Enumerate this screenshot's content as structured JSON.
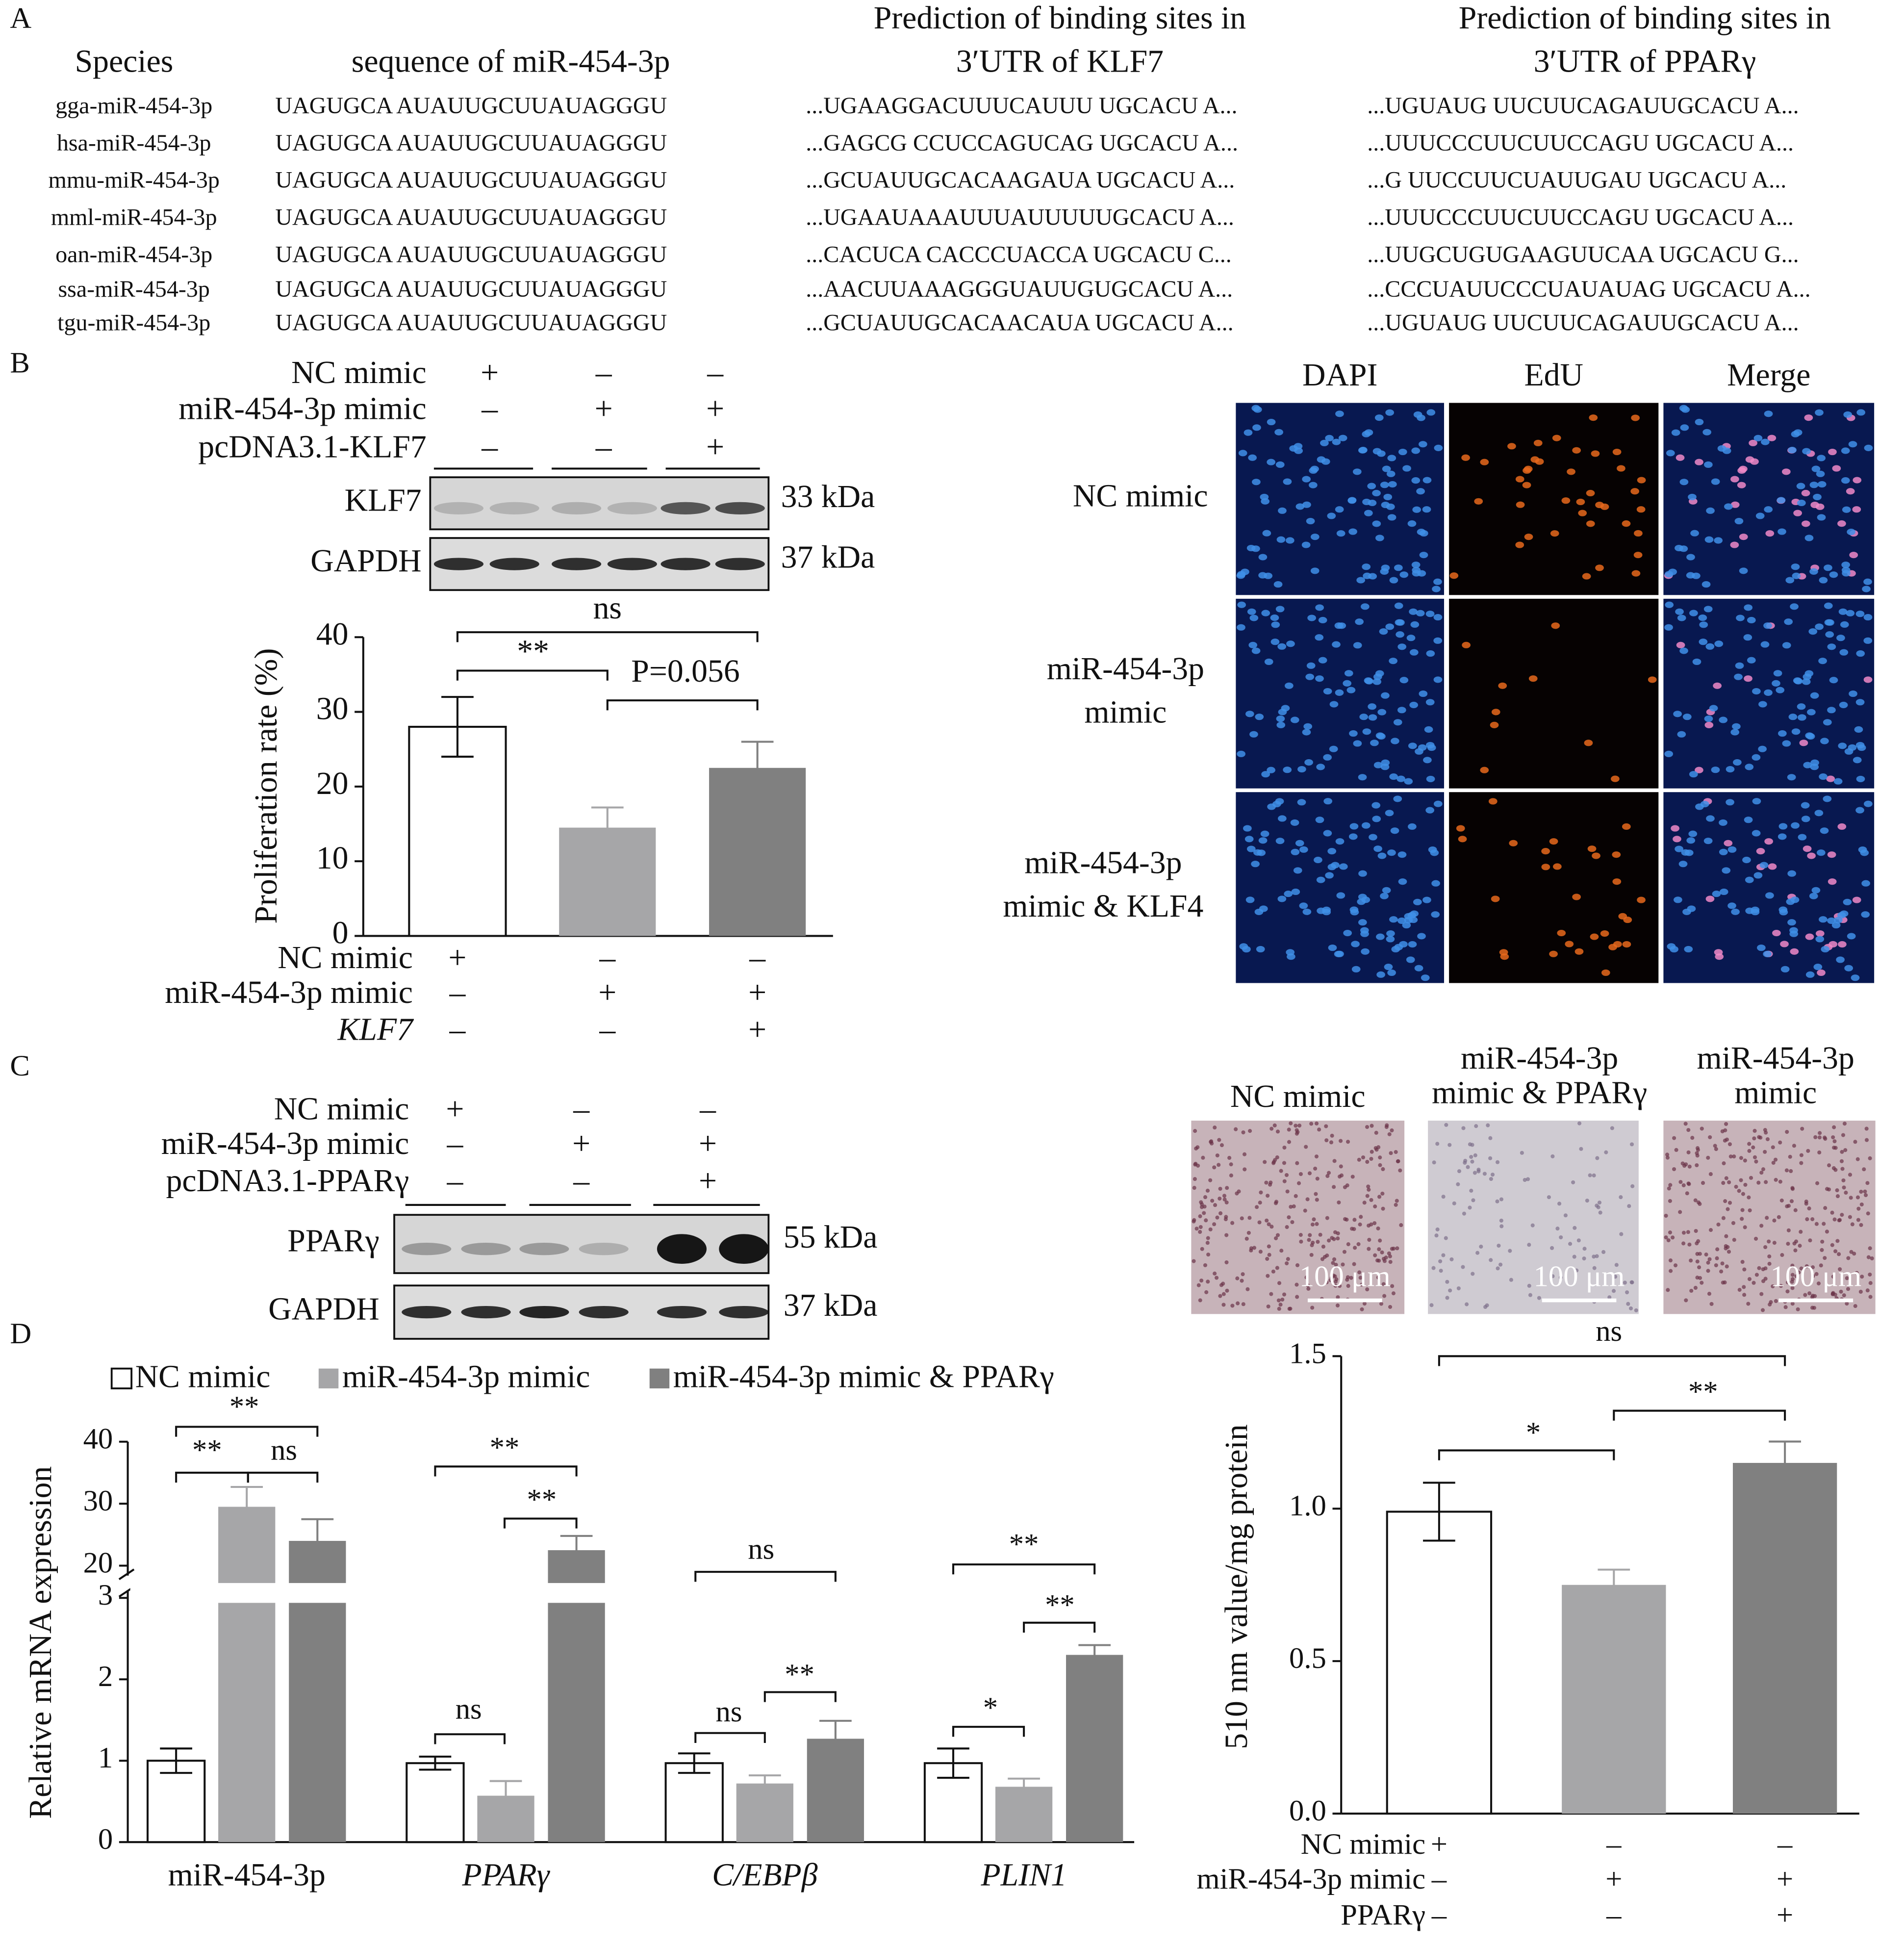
{
  "panel_labels": [
    "A",
    "B",
    "C",
    "D"
  ],
  "sequence_table": {
    "headers": [
      "Species",
      "sequence of miR-454-3p",
      "Prediction of binding sites in",
      "3′UTR of KLF7",
      "Prediction of binding sites in",
      "3′UTR of PPARγ"
    ],
    "rows": [
      [
        "gga-miR-454-3p",
        "UAGUGCA AUAUUGCUUAUAGGGU",
        "...UGAAGGACUUUCAUUU UGCACU A...",
        "...UGUAUG UUCUUCAGAUUGCACU A..."
      ],
      [
        "hsa-miR-454-3p",
        "UAGUGCA AUAUUGCUUAUAGGGU",
        "...GAGCG CCUCCAGUCAG UGCACU A...",
        "...UUUCCCUUCUUCCAGU UGCACU A..."
      ],
      [
        "mmu-miR-454-3p",
        "UAGUGCA AUAUUGCUUAUAGGGU",
        "...GCUAUUGCACAAGAUA UGCACU A...",
        "...G UUCCUUCUAUUGAU UGCACU A..."
      ],
      [
        "mml-miR-454-3p",
        "UAGUGCA AUAUUGCUUAUAGGGU",
        "...UGAAUAAAUUUAUUUUUGCACU A...",
        "...UUUCCCUUCUUCCAGU UGCACU A..."
      ],
      [
        "oan-miR-454-3p",
        "UAGUGCA AUAUUGCUUAUAGGGU",
        "...CACUCA CACCCUACCA UGCACU C...",
        "...UUGCUGUGAAGUUCAA UGCACU G..."
      ],
      [
        "ssa-miR-454-3p",
        "UAGUGCA AUAUUGCUUAUAGGGU",
        "...AACUUAAAGGGUAUUGUGCACU A...",
        "...CCCUAUUCCCUAUAUAG UGCACU A..."
      ],
      [
        "tgu-miR-454-3p",
        "UAGUGCA AUAUUGCUUAUAGGGU",
        "...GCUAUUGCACAACAUA UGCACU A...",
        "...UGUAUG UUCUUCAGAUUGCACU A..."
      ]
    ]
  },
  "blot_b": {
    "conditions": [
      {
        "label": "NC mimic",
        "signs": [
          "+",
          "–",
          "–"
        ]
      },
      {
        "label": "miR-454-3p mimic",
        "signs": [
          "–",
          "+",
          "+"
        ]
      },
      {
        "label": "pcDNA3.1-KLF7",
        "signs": [
          "–",
          "–",
          "+"
        ]
      }
    ],
    "bands": [
      "KLF7",
      "GAPDH"
    ],
    "sizes": [
      "33 kDa",
      "37 kDa"
    ]
  },
  "edu_images": {
    "columns": [
      "DAPI",
      "EdU",
      "Merge"
    ],
    "rows": [
      [
        "NC mimic"
      ],
      [
        "miR-454-3p",
        "mimic"
      ],
      [
        "miR-454-3p",
        "mimic & KLF4"
      ]
    ]
  },
  "blot_c": {
    "conditions": [
      {
        "label": "NC mimic",
        "signs": [
          "+",
          "–",
          "–"
        ]
      },
      {
        "label": "miR-454-3p mimic",
        "signs": [
          "–",
          "+",
          "+"
        ]
      },
      {
        "label": "pcDNA3.1-PPARγ",
        "signs": [
          "–",
          "–",
          "+"
        ]
      }
    ],
    "bands": [
      "PPARγ",
      "GAPDH"
    ],
    "sizes": [
      "55 kDa",
      "37 kDa"
    ]
  },
  "oil_red_images": {
    "labels": [
      [
        "NC mimic"
      ],
      [
        "miR-454-3p",
        "mimic & PPARγ"
      ],
      [
        "miR-454-3p",
        "mimic"
      ]
    ],
    "scale_bar": "100 μm"
  },
  "chart_data": [
    {
      "type": "bar",
      "y_label": "Proliferation rate (%)",
      "values": [
        28,
        14.5,
        22.5
      ],
      "errors": [
        4,
        2.7,
        3.5
      ],
      "colors": [
        "#ffffff",
        "#a6a6a8",
        "#808080"
      ],
      "ylim": [
        0,
        40
      ],
      "yticks": [
        0,
        10,
        20,
        30,
        40
      ],
      "annotations": [
        "ns",
        "**",
        "P=0.056"
      ],
      "conditions": [
        {
          "label": "NC mimic",
          "signs": [
            "+",
            "–",
            "–"
          ]
        },
        {
          "label": "miR-454-3p mimic",
          "signs": [
            "–",
            "+",
            "+"
          ]
        },
        {
          "label": "KLF7",
          "signs": [
            "–",
            "–",
            "+"
          ]
        }
      ]
    },
    {
      "type": "grouped_bar",
      "y_label": "Relative mRNA expression",
      "categories": [
        "miR-454-3p",
        "PPARγ",
        "C/EBPβ",
        "PLIN1"
      ],
      "series": [
        {
          "name": "NC mimic",
          "color": "#ffffff",
          "values": [
            1,
            0.97,
            0.97,
            0.97
          ],
          "errors": [
            0.15,
            0.08,
            0.12,
            0.18
          ]
        },
        {
          "name": "miR-454-3p mimic",
          "color": "#a6a6a8",
          "values": [
            29.5,
            0.57,
            0.72,
            0.68
          ],
          "errors": [
            3.2,
            0.18,
            0.1,
            0.1
          ]
        },
        {
          "name": "miR-454-3p mimic & PPARγ",
          "color": "#808080",
          "values": [
            24,
            22.5,
            1.27,
            2.3
          ],
          "errors": [
            3.5,
            2.3,
            0.22,
            0.12
          ]
        }
      ],
      "ylim": [
        0,
        40
      ],
      "yticks": [
        0,
        1,
        2,
        3,
        20,
        30,
        40
      ],
      "axis_break": [
        3,
        20
      ],
      "legend": "top",
      "annotations": [
        "**",
        "**",
        "ns",
        "**",
        "**",
        "ns",
        "ns",
        "**",
        "ns",
        "**",
        "**",
        "*"
      ]
    },
    {
      "type": "bar",
      "y_label": "510 nm value/mg protein",
      "values": [
        0.99,
        0.75,
        1.15
      ],
      "errors": [
        0.095,
        0.05,
        0.07
      ],
      "colors": [
        "#ffffff",
        "#a6a6a8",
        "#808080"
      ],
      "ylim": [
        0,
        1.5
      ],
      "yticks": [
        {
          "value": 0,
          "label": "0.0"
        },
        0.5,
        {
          "value": 1,
          "label": "1.0"
        },
        1.5
      ],
      "annotations": [
        "ns",
        "*",
        "**"
      ],
      "conditions": [
        {
          "label": "NC mimic",
          "signs": [
            "+",
            "–",
            "–"
          ]
        },
        {
          "label": "miR-454-3p mimic",
          "signs": [
            "–",
            "+",
            "+"
          ]
        },
        {
          "label": "PPARγ",
          "signs": [
            "–",
            "–",
            "+"
          ]
        }
      ]
    }
  ]
}
